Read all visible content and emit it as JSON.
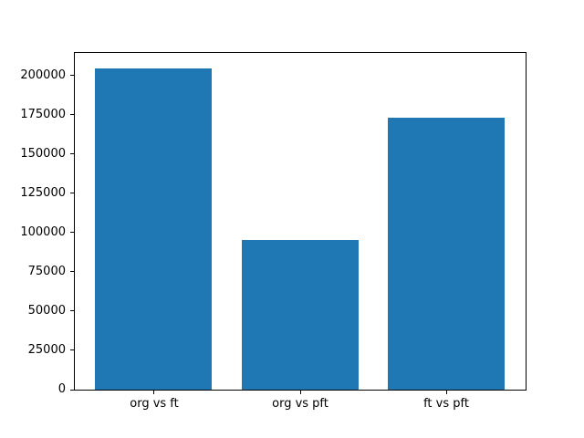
{
  "chart_data": {
    "type": "bar",
    "categories": [
      "org vs ft",
      "org vs pft",
      "ft vs pft"
    ],
    "values": [
      204600,
      95400,
      173300
    ],
    "title": "",
    "xlabel": "",
    "ylabel": "",
    "ylim": [
      0,
      214500
    ],
    "yticks": [
      0,
      25000,
      50000,
      75000,
      100000,
      125000,
      150000,
      175000,
      200000
    ],
    "ytick_labels": [
      "0",
      "25000",
      "50000",
      "75000",
      "100000",
      "125000",
      "150000",
      "175000",
      "200000"
    ],
    "bar_width": 0.8,
    "grid": false,
    "legend": null
  },
  "colors": {
    "bar": "#1f77b4",
    "spine": "#000000",
    "background": "#ffffff",
    "text": "#000000"
  }
}
